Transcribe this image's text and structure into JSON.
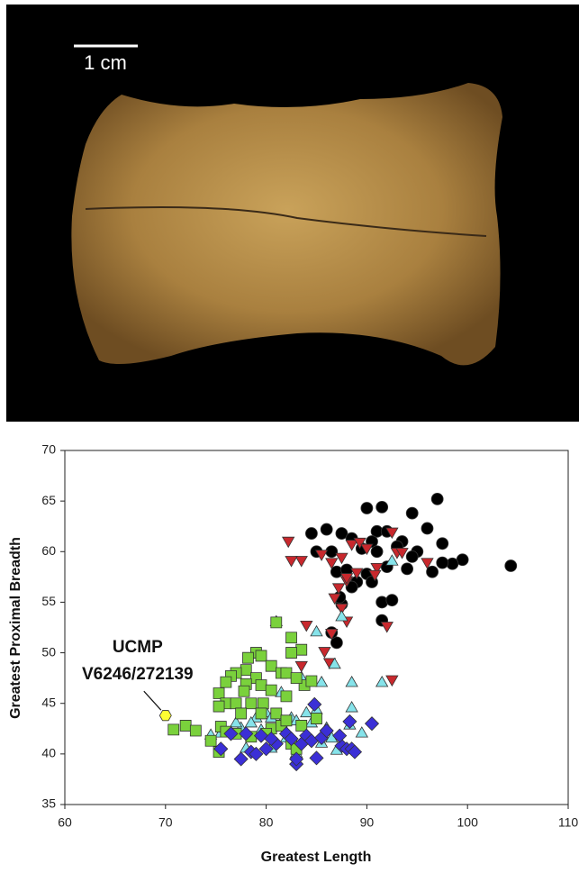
{
  "photo": {
    "scale_bar": "1 cm"
  },
  "chart_data": {
    "type": "scatter",
    "xlabel": "Greatest Length",
    "ylabel": "Greatest Proximal Breadth",
    "xlim": [
      60,
      110
    ],
    "ylim": [
      35,
      70
    ],
    "xticks": [
      60,
      70,
      80,
      90,
      100,
      110
    ],
    "yticks": [
      35,
      40,
      45,
      50,
      55,
      60,
      65,
      70
    ],
    "grid": false,
    "annotation": [
      "UCMP",
      "V6246/272139"
    ],
    "series": [
      {
        "color": "#000000",
        "marker": "circle",
        "x": [
          97,
          91.5,
          90,
          94.5,
          86,
          84.5,
          87.5,
          91,
          92,
          96,
          88.5,
          90.5,
          93.5,
          97.5,
          85,
          86.5,
          89.5,
          91,
          93,
          95,
          99.5,
          98.5,
          97.5,
          96.5,
          104.3,
          87,
          88,
          89,
          90,
          92,
          94,
          88.5,
          87.5,
          91.5,
          92.5,
          91.5,
          87,
          86.5,
          90.5,
          94.5,
          87.3
        ],
        "y": [
          65.2,
          64.4,
          64.3,
          63.8,
          62.2,
          61.8,
          61.8,
          62,
          62,
          62.3,
          61.3,
          61,
          61,
          60.8,
          60,
          60,
          60.3,
          60,
          60.5,
          60,
          59.2,
          58.8,
          58.9,
          58,
          58.6,
          58,
          58.2,
          57,
          57.8,
          58.5,
          58.3,
          56.5,
          54.8,
          55,
          55.2,
          53.2,
          51,
          52,
          57,
          59.5,
          55.5
        ]
      },
      {
        "color": "#c8282d",
        "marker": "triangle-down",
        "x": [
          82.2,
          85.5,
          83.5,
          82.5,
          86.5,
          87.5,
          88.5,
          89.3,
          90,
          92.5,
          93,
          93.5,
          89,
          91,
          90.8,
          88,
          87.2,
          86.8,
          87.5,
          88,
          84,
          86.5,
          85.8,
          86.3,
          83.5,
          96,
          92,
          92.5,
          88
        ],
        "y": [
          61.1,
          59.8,
          59.2,
          59.2,
          59,
          59.5,
          60.8,
          61,
          60.4,
          62,
          60,
          60,
          58,
          58.5,
          57.8,
          57.2,
          56.5,
          55.5,
          54.5,
          53.2,
          52.8,
          52,
          50.2,
          49.1,
          48.8,
          59,
          52.7,
          47.4,
          57.5
        ]
      },
      {
        "color": "#86e3ea",
        "marker": "triangle-up",
        "x": [
          81,
          85,
          87.5,
          86.8,
          88.5,
          91.5,
          85.5,
          83.5,
          81.5,
          88.5,
          85,
          84,
          82.5,
          80,
          79,
          78.5,
          77.5,
          77,
          76,
          75.5,
          74.5,
          80.5,
          81.5,
          83,
          84.5,
          86,
          86.5,
          88.3,
          80,
          82,
          85.5,
          78,
          80.5,
          83,
          87,
          89.5,
          79.5,
          92.5
        ],
        "y": [
          53,
          52,
          53.5,
          48.8,
          47,
          47,
          47,
          47.5,
          46,
          44.5,
          44.3,
          44,
          43.5,
          44,
          43.5,
          43,
          42.5,
          43,
          42,
          42,
          41.8,
          43.5,
          43,
          43.2,
          43,
          42.5,
          41.5,
          42.8,
          42,
          41.5,
          41,
          40.5,
          40.5,
          40,
          40.3,
          42,
          42.3,
          59
        ]
      },
      {
        "color": "#7ad13c",
        "marker": "square",
        "x": [
          81,
          82.5,
          83.5,
          82.5,
          79,
          79.5,
          78.2,
          78,
          80.5,
          81.5,
          82,
          77,
          79,
          76.5,
          76,
          78,
          79.5,
          77.8,
          80.5,
          82,
          75.3,
          76,
          77,
          78.5,
          79.7,
          75.3,
          77.5,
          79.5,
          81,
          83.8,
          84.5,
          83,
          80.5,
          81.5,
          82,
          83.5,
          80,
          78.5,
          77,
          75.5,
          74.5,
          75.3,
          82.5,
          83,
          85,
          70.8,
          72,
          73,
          76
        ],
        "y": [
          53,
          51.5,
          50.3,
          50,
          50,
          49.7,
          49.5,
          48.3,
          48.7,
          48,
          48,
          48,
          47.5,
          47.7,
          47.1,
          46.9,
          46.8,
          46.2,
          46.3,
          45.7,
          46,
          45,
          45,
          45,
          45,
          44.7,
          44,
          44,
          44,
          46.8,
          47.2,
          47.5,
          42.5,
          42.8,
          43.3,
          42.8,
          42,
          41.7,
          42,
          42.7,
          41.3,
          40.2,
          41,
          40.5,
          43.5,
          42.4,
          42.8,
          42.3,
          42.2
        ]
      },
      {
        "color": "#3b2fd6",
        "marker": "diamond",
        "x": [
          75.5,
          77.5,
          78.5,
          79,
          80,
          81,
          79.5,
          78,
          76.5,
          80.5,
          82,
          82.5,
          83,
          83.5,
          84,
          84.5,
          85,
          85.5,
          86,
          87.5,
          88,
          88.5,
          88.8,
          88.3,
          90.5,
          87.3,
          84.8,
          83
        ],
        "y": [
          40.5,
          39.5,
          40.2,
          40,
          40.5,
          41,
          41.8,
          42,
          42,
          41.5,
          42,
          41.5,
          39,
          41,
          41.8,
          41.3,
          39.6,
          41.6,
          42.3,
          40.8,
          40.5,
          40.5,
          40.2,
          43.2,
          43,
          41.8,
          44.9,
          39.5
        ]
      },
      {
        "color": "#ffff33",
        "marker": "hexagon",
        "x": [
          70
        ],
        "y": [
          43.8
        ]
      }
    ]
  }
}
